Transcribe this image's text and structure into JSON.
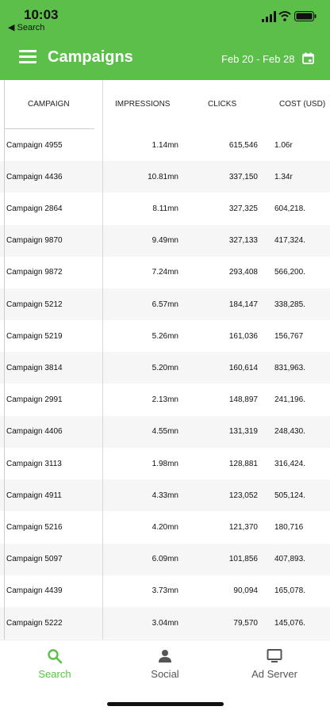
{
  "status_bar": {
    "time": "10:03",
    "back_label": "◀ Search"
  },
  "header": {
    "title": "Campaigns",
    "date_range": "Feb 20 - Feb 28"
  },
  "table": {
    "columns": [
      "CAMPAIGN",
      "IMPRESSIONS",
      "CLICKS",
      "COST (USD)"
    ],
    "rows": [
      {
        "campaign": "Campaign 4955",
        "impressions": "1.14mn",
        "clicks": "615,546",
        "cost": "1.06r"
      },
      {
        "campaign": "Campaign 4436",
        "impressions": "10.81mn",
        "clicks": "337,150",
        "cost": "1.34r"
      },
      {
        "campaign": "Campaign 2864",
        "impressions": "8.11mn",
        "clicks": "327,325",
        "cost": "604,218."
      },
      {
        "campaign": "Campaign 9870",
        "impressions": "9.49mn",
        "clicks": "327,133",
        "cost": "417,324."
      },
      {
        "campaign": "Campaign 9872",
        "impressions": "7.24mn",
        "clicks": "293,408",
        "cost": "566,200."
      },
      {
        "campaign": "Campaign 5212",
        "impressions": "6.57mn",
        "clicks": "184,147",
        "cost": "338,285."
      },
      {
        "campaign": "Campaign 5219",
        "impressions": "5.26mn",
        "clicks": "161,036",
        "cost": "156,767"
      },
      {
        "campaign": "Campaign 3814",
        "impressions": "5.20mn",
        "clicks": "160,614",
        "cost": "831,963."
      },
      {
        "campaign": "Campaign 2991",
        "impressions": "2.13mn",
        "clicks": "148,897",
        "cost": "241,196."
      },
      {
        "campaign": "Campaign 4406",
        "impressions": "4.55mn",
        "clicks": "131,319",
        "cost": "248,430."
      },
      {
        "campaign": "Campaign 3113",
        "impressions": "1.98mn",
        "clicks": "128,881",
        "cost": "316,424."
      },
      {
        "campaign": "Campaign 4911",
        "impressions": "4.33mn",
        "clicks": "123,052",
        "cost": "505,124."
      },
      {
        "campaign": "Campaign 5216",
        "impressions": "4.20mn",
        "clicks": "121,370",
        "cost": "180,716"
      },
      {
        "campaign": "Campaign 5097",
        "impressions": "6.09mn",
        "clicks": "101,856",
        "cost": "407,893."
      },
      {
        "campaign": "Campaign 4439",
        "impressions": "3.73mn",
        "clicks": "90,094",
        "cost": "165,078."
      },
      {
        "campaign": "Campaign 5222",
        "impressions": "3.04mn",
        "clicks": "79,570",
        "cost": "145,076."
      }
    ]
  },
  "tabs": [
    {
      "label": "Search",
      "icon": "search-icon",
      "active": true
    },
    {
      "label": "Social",
      "icon": "person-icon",
      "active": false
    },
    {
      "label": "Ad Server",
      "icon": "monitor-icon",
      "active": false
    }
  ],
  "colors": {
    "accent": "#5cbf4a",
    "inactive": "#555555"
  }
}
